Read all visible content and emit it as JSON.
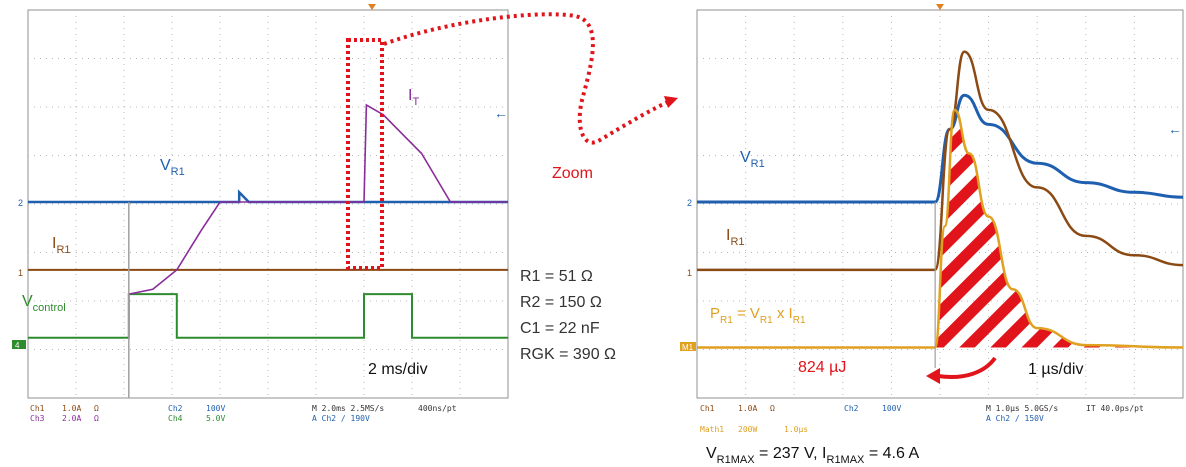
{
  "left_scope": {
    "labels": {
      "vr1": "V",
      "vr1_sub": "R1",
      "ir1": "I",
      "ir1_sub": "R1",
      "vctl": "V",
      "vctl_sub": "control",
      "it": "I",
      "it_sub": "T",
      "timebase": "2 ms/div"
    },
    "ch_markers": [
      "2",
      "1",
      "4"
    ],
    "footer": {
      "ch1": "Ch1",
      "ch1_scale": "1.0A",
      "ch1_unit": "Ω",
      "ch3": "Ch3",
      "ch3_scale": "2.0A",
      "ch3_unit": "Ω",
      "ch2": "Ch2",
      "ch2_scale": "100V",
      "ch4": "Ch4",
      "ch4_scale": "5.0V",
      "acq": "M 2.0ms 2.5MS/s",
      "rec": "400ns/pt",
      "trig": "A  Ch2  ∕  190V"
    }
  },
  "components": [
    "R1 = 51 Ω",
    "R2 = 150 Ω",
    "C1 = 22 nF",
    "RGK = 390 Ω"
  ],
  "zoom_label": "Zoom",
  "right_scope": {
    "labels": {
      "vr1": "V",
      "vr1_sub": "R1",
      "ir1": "I",
      "ir1_sub": "R1",
      "p_a": "P",
      "p_a_sub": "R1",
      "p_b": " = V",
      "p_b_sub": "R1",
      "p_c": " x I",
      "p_c_sub": "R1",
      "energy": "824 µJ",
      "timebase": "1 µs/div"
    },
    "ch_markers": [
      "2",
      "1",
      "M1"
    ],
    "footer": {
      "ch1": "Ch1",
      "ch1_scale": "1.0A",
      "ch1_unit": "Ω",
      "ch2": "Ch2",
      "ch2_scale": "100V",
      "acq": "M 1.0µs 5.0GS/s",
      "rec": "IT 40.0ps/pt",
      "trig": "A  Ch2  ∕  150V",
      "math": "Math1",
      "math_scale": "200W",
      "math_time": "1.0µs"
    }
  },
  "max_line": {
    "a": "V",
    "a_sub": "R1MAX",
    "b": " = 237 V, I",
    "b_sub": "R1MAX",
    "c": " = 4.6 A"
  },
  "colors": {
    "grid_bg": "#ffffff",
    "grid_dot": "#b8b8b8",
    "vr1": "#1f5fb0",
    "ir1": "#8b4a14",
    "vctl": "#2e8b2e",
    "it": "#8a2c9a",
    "power": "#e0a020",
    "zoom": "#e0141a"
  },
  "chart_data": [
    {
      "type": "line",
      "title": "",
      "x_unit": "div",
      "y_unit": "div",
      "xlim": [
        0,
        10
      ],
      "ylim": [
        -4,
        4
      ],
      "series": [
        {
          "name": "VR1",
          "x": [
            0,
            4.4,
            4.4,
            4.6,
            10
          ],
          "y": [
            0,
            0,
            0.2,
            0,
            0
          ]
        },
        {
          "name": "IR1",
          "x": [
            0,
            10
          ],
          "y": [
            -1.4,
            -1.4
          ]
        },
        {
          "name": "Vcontrol",
          "x": [
            0,
            2.1,
            2.1,
            3.1,
            3.1,
            7.0,
            7.0,
            8.0,
            8.0,
            10
          ],
          "y": [
            -2.8,
            -2.8,
            -1.9,
            -1.9,
            -2.8,
            -2.8,
            -1.9,
            -1.9,
            -2.8,
            -2.8
          ]
        },
        {
          "name": "IT",
          "x": [
            2.1,
            2.6,
            3.1,
            3.6,
            4.0,
            4.3,
            7.0,
            7.05,
            7.4,
            8.2,
            8.8,
            10
          ],
          "y": [
            -1.9,
            -1.8,
            -1.4,
            -0.6,
            0,
            0,
            0,
            2.0,
            1.8,
            1.0,
            0,
            0
          ]
        }
      ]
    },
    {
      "type": "line",
      "title": "",
      "x_unit": "µs",
      "y_unit": "div",
      "xlim": [
        -5,
        5
      ],
      "ylim": [
        -4,
        4
      ],
      "series": [
        {
          "name": "VR1",
          "x": [
            -5,
            -0.1,
            0.2,
            0.5,
            1,
            2,
            3,
            4,
            5
          ],
          "y": [
            0,
            0,
            1.5,
            2.2,
            1.6,
            0.8,
            0.4,
            0.2,
            0.1
          ]
        },
        {
          "name": "IR1",
          "x": [
            -5,
            -0.1,
            0.2,
            0.5,
            1,
            2,
            3,
            4,
            5
          ],
          "y": [
            -1.4,
            -1.4,
            1.5,
            3.1,
            1.9,
            0.3,
            -0.7,
            -1.1,
            -1.3
          ]
        },
        {
          "name": "PR1",
          "x": [
            -5,
            -0.1,
            0.1,
            0.3,
            0.6,
            1,
            1.5,
            2,
            3,
            5
          ],
          "y": [
            -3.0,
            -3.0,
            -0.5,
            1.9,
            1.0,
            -0.3,
            -1.8,
            -2.6,
            -2.95,
            -3.0
          ]
        }
      ],
      "annotations": [
        "824 µJ"
      ]
    }
  ]
}
